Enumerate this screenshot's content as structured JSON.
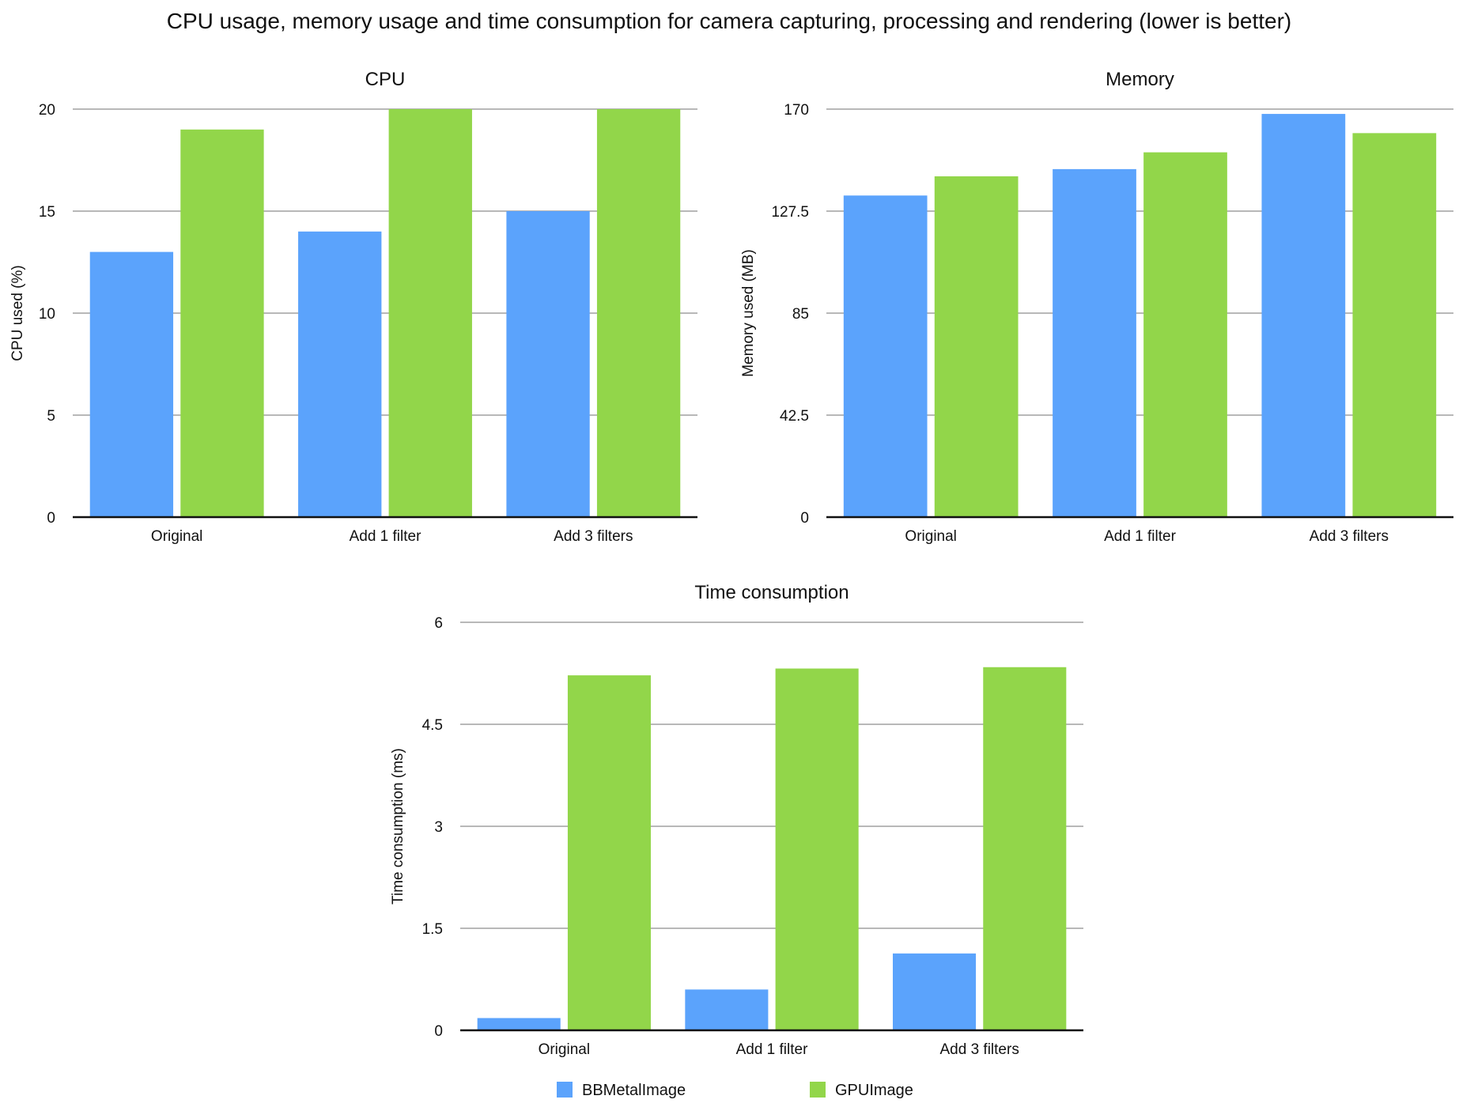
{
  "title": "CPU usage, memory usage and time consumption for camera capturing, processing and rendering (lower is better)",
  "colors": {
    "BBMetalImage": "#5ba3fc",
    "GPUImage": "#92d64a"
  },
  "chart_data": [
    {
      "type": "bar",
      "title": "CPU",
      "xlabel": "",
      "ylabel": "CPU used (%)",
      "ylim": [
        0,
        20
      ],
      "yticks": [
        "0",
        "5",
        "10",
        "15",
        "20"
      ],
      "categories": [
        "Original",
        "Add 1 filter",
        "Add 3 filters"
      ],
      "series": [
        {
          "name": "BBMetalImage",
          "values": [
            13,
            14,
            15
          ]
        },
        {
          "name": "GPUImage",
          "values": [
            19,
            20,
            20
          ]
        }
      ]
    },
    {
      "type": "bar",
      "title": "Memory",
      "xlabel": "",
      "ylabel": "Memory used (MB)",
      "ylim": [
        0,
        170
      ],
      "yticks": [
        "0",
        "42.5",
        "85",
        "127.5",
        "170"
      ],
      "categories": [
        "Original",
        "Add 1 filter",
        "Add 3 filters"
      ],
      "series": [
        {
          "name": "BBMetalImage",
          "values": [
            134,
            145,
            168
          ]
        },
        {
          "name": "GPUImage",
          "values": [
            142,
            152,
            160
          ]
        }
      ]
    },
    {
      "type": "bar",
      "title": "Time consumption",
      "xlabel": "",
      "ylabel": "Time consumption (ms)",
      "ylim": [
        0,
        6
      ],
      "yticks": [
        "0",
        "1.5",
        "3",
        "4.5",
        "6"
      ],
      "categories": [
        "Original",
        "Add 1 filter",
        "Add 3 filters"
      ],
      "series": [
        {
          "name": "BBMetalImage",
          "values": [
            0.18,
            0.6,
            1.13
          ]
        },
        {
          "name": "GPUImage",
          "values": [
            5.22,
            5.32,
            5.34
          ]
        }
      ]
    }
  ],
  "legend": [
    {
      "label": "BBMetalImage"
    },
    {
      "label": "GPUImage"
    }
  ]
}
